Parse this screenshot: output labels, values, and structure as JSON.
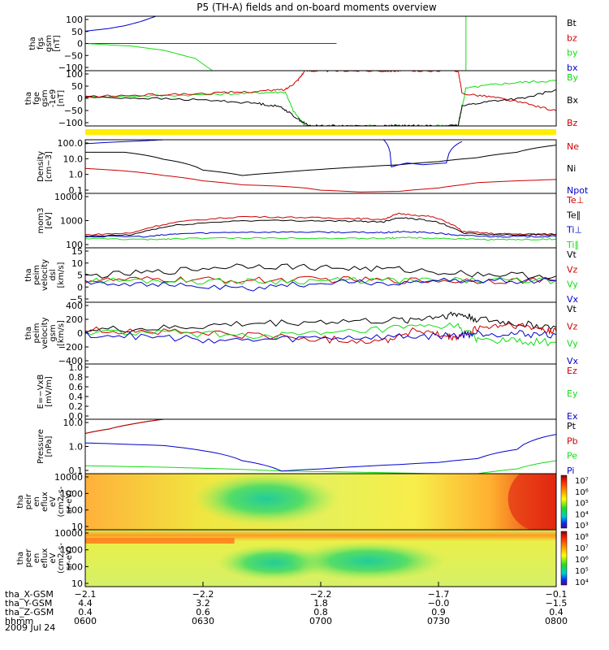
{
  "figure": {
    "title": "P5 (TH-A) fields and on-board moments overview",
    "date": "2009 Jul 24"
  },
  "colors": {
    "black": "#000000",
    "red": "#cc0000",
    "green": "#11dd11",
    "blue": "#0000cc",
    "yellow": "#ffee00"
  },
  "chart_data": [
    {
      "type": "line",
      "panel": "fgs_gsm",
      "ylabel": [
        "tha",
        "fgs",
        "gsm",
        "[nT]"
      ],
      "ylim": [
        -100,
        100
      ],
      "y_ticks": [
        "100",
        "50",
        "0",
        "−50",
        "−100"
      ],
      "series": [
        {
          "name": "Bt",
          "color": "#000000",
          "x": [
            0,
            32
          ],
          "y": [
            0,
            0
          ]
        },
        {
          "name": "bz",
          "color": "#cc0000",
          "x": [
            0,
            32
          ],
          "y": [
            0,
            0
          ]
        },
        {
          "name": "by",
          "color": "#11dd11",
          "x": [
            0,
            6,
            10,
            14,
            16.2
          ],
          "y": [
            0,
            -10,
            -25,
            -55,
            -100
          ]
        },
        {
          "name": "bx",
          "color": "#0000cc",
          "x": [
            0,
            3,
            5,
            7,
            9
          ],
          "y": [
            45,
            55,
            65,
            80,
            100
          ]
        }
      ]
    },
    {
      "type": "line",
      "panel": "fge_gsm",
      "ylabel": [
        "tha",
        "fge",
        "gsm",
        "-1e9",
        "[nT]"
      ],
      "ylim": [
        -120,
        100
      ],
      "y_ticks": [
        "100",
        "50",
        "0",
        "−50",
        "−100"
      ],
      "series": [
        {
          "name": "By",
          "color": "#11dd11",
          "x": [
            0,
            8,
            16,
            22,
            25.5,
            26.5,
            28,
            30,
            33,
            38,
            40,
            42,
            44,
            47.5,
            48.5,
            52,
            56,
            60
          ],
          "y": [
            -5,
            0,
            5,
            12,
            15,
            -60,
            -120,
            -120,
            -120,
            -120,
            -120,
            -120,
            -120,
            -120,
            30,
            45,
            55,
            60
          ]
        },
        {
          "name": "Bx",
          "color": "#000000",
          "x": [
            0,
            8,
            16,
            22,
            25,
            27,
            28.5,
            30,
            33,
            38,
            40,
            42,
            44,
            47.5,
            48,
            52,
            56,
            60
          ],
          "y": [
            -5,
            -10,
            -18,
            -30,
            -45,
            -90,
            -120,
            -120,
            -120,
            -120,
            -120,
            -120,
            -120,
            -120,
            -40,
            -20,
            -10,
            25
          ]
        },
        {
          "name": "Bz",
          "color": "#cc0000",
          "x": [
            0,
            8,
            16,
            22,
            25.5,
            27,
            28,
            30,
            33,
            38,
            40,
            42,
            44,
            47.5,
            48,
            52,
            56,
            60
          ],
          "y": [
            -3,
            3,
            10,
            18,
            25,
            60,
            100,
            100,
            100,
            100,
            100,
            100,
            100,
            100,
            10,
            -5,
            -30,
            -60
          ]
        }
      ]
    },
    {
      "type": "line",
      "panel": "density",
      "ylabel": [
        "Density",
        "[cm−3]"
      ],
      "ylim": [
        0.1,
        100
      ],
      "log": true,
      "y_ticks": [
        "100.0",
        "10.0",
        "1.0",
        "0.1"
      ],
      "series": [
        {
          "name": "Ne",
          "color": "#cc0000",
          "x": [
            0,
            5,
            10,
            15,
            20,
            25,
            28,
            30,
            35,
            40,
            45,
            48,
            50,
            55,
            60
          ],
          "y": [
            2.5,
            1.8,
            1.0,
            0.5,
            0.3,
            0.25,
            0.2,
            0.15,
            0.12,
            0.13,
            0.2,
            0.3,
            0.4,
            0.5,
            0.6
          ]
        },
        {
          "name": "Ni",
          "color": "#000000",
          "x": [
            0,
            5,
            10,
            15,
            20,
            25,
            30,
            35,
            40,
            45,
            50,
            55,
            60
          ],
          "y": [
            20,
            20,
            8,
            2,
            1,
            1.5,
            2.2,
            3,
            4,
            6,
            10,
            20,
            50
          ]
        },
        {
          "name": "Npot",
          "color": "#0000cc",
          "x": [
            0,
            8,
            10,
            38,
            39,
            41,
            43,
            46,
            48
          ],
          "y": [
            60,
            90,
            100,
            100,
            3,
            5,
            4,
            5,
            80
          ]
        }
      ]
    },
    {
      "type": "line",
      "panel": "temperature",
      "ylabel": [
        "mom3",
        "[eV]"
      ],
      "ylim": [
        100,
        10000
      ],
      "log": true,
      "y_ticks": [
        "10000",
        "1000",
        "100"
      ],
      "series": [
        {
          "name": "Te⊥",
          "color": "#cc0000",
          "x": [
            0,
            6,
            12,
            20,
            28,
            34,
            38,
            40,
            44,
            48,
            52,
            56,
            60
          ],
          "y": [
            300,
            350,
            900,
            1400,
            1300,
            1200,
            1100,
            1800,
            1400,
            400,
            330,
            320,
            320
          ]
        },
        {
          "name": "Te∥",
          "color": "#000000",
          "x": [
            0,
            6,
            12,
            20,
            28,
            34,
            38,
            40,
            44,
            48,
            52,
            56,
            60
          ],
          "y": [
            260,
            300,
            700,
            1000,
            1000,
            950,
            900,
            1300,
            1000,
            350,
            300,
            300,
            300
          ]
        },
        {
          "name": "Ti⊥",
          "color": "#0000cc",
          "x": [
            0,
            8,
            12,
            20,
            28,
            34,
            38,
            40,
            44,
            48,
            52,
            56,
            60
          ],
          "y": [
            260,
            260,
            330,
            380,
            380,
            370,
            360,
            390,
            360,
            280,
            260,
            260,
            260
          ]
        },
        {
          "name": "Ti∥",
          "color": "#11dd11",
          "x": [
            0,
            8,
            12,
            20,
            28,
            34,
            38,
            40,
            44,
            48,
            52,
            56,
            60
          ],
          "y": [
            220,
            200,
            220,
            230,
            230,
            220,
            220,
            240,
            230,
            210,
            200,
            200,
            210
          ]
        }
      ]
    },
    {
      "type": "line",
      "panel": "peim_velocity_dsl",
      "ylabel": [
        "tha",
        "peim",
        "velocity",
        "dsl",
        "[km/s]"
      ],
      "ylim": [
        -10,
        15
      ],
      "y_ticks": [
        "15",
        "10",
        "5",
        "0",
        "−5"
      ],
      "series": [
        {
          "name": "Vt",
          "color": "#000000",
          "x": [
            0,
            10,
            20,
            30,
            40,
            50,
            60
          ],
          "y": [
            2,
            4,
            7,
            6,
            5,
            3,
            2
          ]
        },
        {
          "name": "Vz",
          "color": "#cc0000",
          "x": [
            0,
            10,
            20,
            30,
            40,
            50,
            60
          ],
          "y": [
            0,
            0.5,
            0,
            0.5,
            0,
            0,
            0
          ]
        },
        {
          "name": "Vy",
          "color": "#11dd11",
          "x": [
            0,
            10,
            20,
            30,
            40,
            50,
            60
          ],
          "y": [
            0,
            0,
            -0.5,
            0,
            0,
            0,
            0
          ]
        },
        {
          "name": "Vx",
          "color": "#0000cc",
          "x": [
            0,
            10,
            20,
            30,
            40,
            50,
            60
          ],
          "y": [
            -0.5,
            -2,
            -4,
            -1,
            -1,
            0,
            0
          ]
        }
      ]
    },
    {
      "type": "line",
      "panel": "peim_velocity_gsm",
      "ylabel": [
        "tha",
        "peim",
        "velocity",
        "gsm",
        "[km/s]"
      ],
      "ylim": [
        -400,
        400
      ],
      "y_ticks": [
        "400",
        "200",
        "0",
        "−200",
        "−400"
      ],
      "series": [
        {
          "name": "Vt",
          "color": "#000000",
          "x": [
            0,
            10,
            20,
            30,
            40,
            45,
            47.5,
            50,
            55,
            60
          ],
          "y": [
            40,
            60,
            120,
            150,
            160,
            220,
            250,
            180,
            120,
            80
          ]
        },
        {
          "name": "Vz",
          "color": "#cc0000",
          "x": [
            0,
            10,
            20,
            30,
            38,
            42,
            46,
            47.5,
            50,
            54,
            58,
            60
          ],
          "y": [
            40,
            20,
            -20,
            -80,
            -100,
            40,
            -50,
            -60,
            60,
            110,
            50,
            20
          ]
        },
        {
          "name": "Vy",
          "color": "#11dd11",
          "x": [
            0,
            10,
            20,
            30,
            40,
            47.5,
            50,
            55,
            60
          ],
          "y": [
            10,
            0,
            -30,
            -20,
            60,
            90,
            -80,
            -110,
            -120
          ]
        },
        {
          "name": "Vx",
          "color": "#0000cc",
          "x": [
            0,
            10,
            20,
            30,
            40,
            47.5,
            50,
            55,
            60
          ],
          "y": [
            -10,
            -60,
            -100,
            -60,
            -50,
            -30,
            0,
            -10,
            -20
          ]
        }
      ]
    },
    {
      "type": "line",
      "panel": "exb",
      "ylabel": [
        "E=−VxB",
        "[mV/m]"
      ],
      "ylim": [
        0,
        1
      ],
      "y_ticks": [
        "1.0",
        "0.8",
        "0.6",
        "0.4",
        "0.2",
        "0.0"
      ],
      "series": [
        {
          "name": "Ez",
          "color": "#cc0000",
          "x": [],
          "y": []
        },
        {
          "name": "Ey",
          "color": "#11dd11",
          "x": [],
          "y": []
        },
        {
          "name": "Ex",
          "color": "#0000cc",
          "x": [],
          "y": []
        }
      ]
    },
    {
      "type": "line",
      "panel": "pressure",
      "ylabel": [
        "Pressure",
        "[nPa]"
      ],
      "ylim": [
        0.03,
        10
      ],
      "log": true,
      "y_ticks": [
        "10.0",
        "1.0",
        "0.1"
      ],
      "series": [
        {
          "name": "Pt",
          "color": "#000000",
          "x": [
            0,
            3,
            6,
            10
          ],
          "y": [
            2.2,
            3.5,
            6,
            10
          ]
        },
        {
          "name": "Pb",
          "color": "#cc0000",
          "x": [
            0,
            3,
            6,
            10
          ],
          "y": [
            2.2,
            3.5,
            6,
            10
          ]
        },
        {
          "name": "Pe",
          "color": "#11dd11",
          "x": [
            0,
            10,
            18,
            25,
            35,
            45,
            50,
            55,
            60
          ],
          "y": [
            0.07,
            0.06,
            0.05,
            0.04,
            0.035,
            0.03,
            0.03,
            0.05,
            0.12
          ]
        },
        {
          "name": "Pi",
          "color": "#0000cc",
          "x": [
            0,
            10,
            15,
            20,
            25,
            30,
            40,
            45,
            50,
            55,
            60
          ],
          "y": [
            0.8,
            0.6,
            0.35,
            0.12,
            0.04,
            0.05,
            0.08,
            0.1,
            0.15,
            0.4,
            2.0
          ]
        }
      ]
    },
    {
      "type": "heatmap",
      "panel": "peir_eflux",
      "ylabel": [
        "tha",
        "peir",
        "en",
        "eflux",
        "eV",
        "(cm2-s-",
        "sr-eV)"
      ],
      "ylim": [
        5,
        30000
      ],
      "log": true,
      "y_ticks": [
        "10000",
        "1000",
        "100",
        "10"
      ],
      "colorbar_ticks": [
        "10⁷",
        "10⁶",
        "10⁵",
        "10⁴",
        "10³"
      ]
    },
    {
      "type": "heatmap",
      "panel": "peer_eflux",
      "ylabel": [
        "tha",
        "peer",
        "en",
        "eflux",
        "eV",
        "(cm2-s-",
        "sr-eV)"
      ],
      "ylim": [
        5,
        30000
      ],
      "log": true,
      "y_ticks": [
        "10000",
        "1000",
        "100",
        "10"
      ],
      "colorbar_ticks": [
        "10⁸",
        "10⁷",
        "10⁶",
        "10⁵",
        "10⁴"
      ]
    }
  ],
  "time_axis": {
    "x_range_minutes": [
      0,
      120
    ],
    "tick_minutes": [
      0,
      30,
      60,
      90,
      120
    ],
    "row_labels": [
      "tha_X-GSM",
      "tha_Y-GSM",
      "tha_Z-GSM",
      "hhmm"
    ],
    "rows": [
      [
        "−2.1",
        "−2.2",
        "−2.2",
        "−1.7",
        "−0.1"
      ],
      [
        "4.4",
        "3.2",
        "1.8",
        "−0.0",
        "−1.5"
      ],
      [
        "0.4",
        "0.6",
        "0.8",
        "0.9",
        "0.4"
      ],
      [
        "0600",
        "0630",
        "0700",
        "0730",
        "0800"
      ]
    ]
  }
}
